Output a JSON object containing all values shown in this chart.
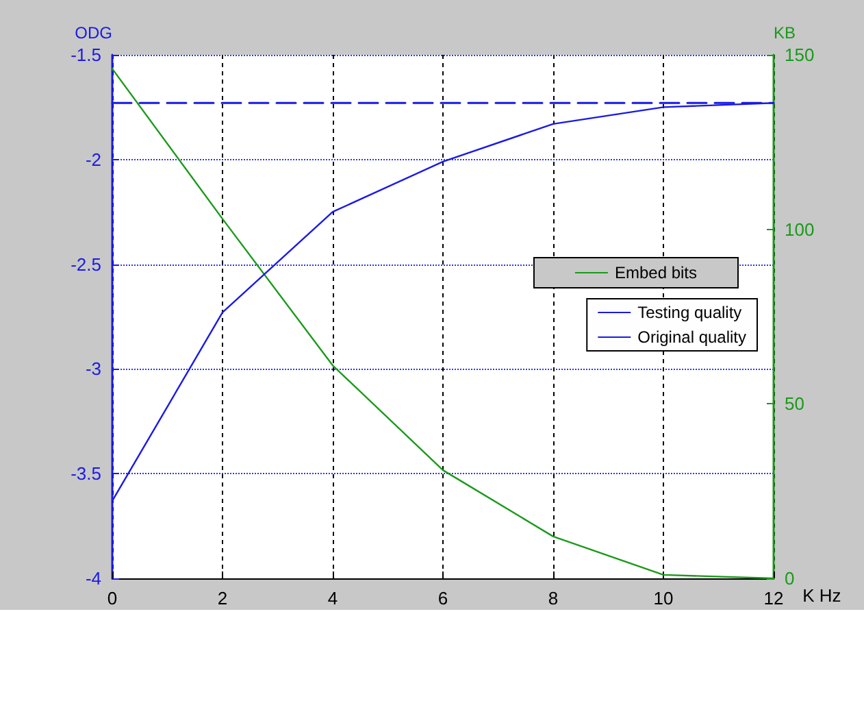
{
  "chart_data": {
    "type": "line",
    "xlabel": "K Hz",
    "ylabel": "ODG",
    "y2label": "KB",
    "x": [
      0,
      2,
      4,
      6,
      8,
      10,
      12
    ],
    "series": [
      {
        "name": "Embed bits",
        "color": "#1a9a1a",
        "axis": "y2",
        "values": [
          146,
          103,
          61,
          31,
          12,
          1,
          0
        ]
      },
      {
        "name": "Testing quality",
        "color": "#1a1ae6",
        "values": [
          -3.63,
          -2.73,
          -2.25,
          -2.01,
          -1.83,
          -1.75,
          -1.73
        ]
      },
      {
        "name": "Original quality",
        "color": "#1a1ae6",
        "line_style": "dashed",
        "values": [
          -1.73,
          -1.73,
          -1.73,
          -1.73,
          -1.73,
          -1.73,
          -1.73
        ]
      }
    ],
    "xlim": [
      0,
      12
    ],
    "xticks": [
      0,
      2,
      4,
      6,
      8,
      10,
      12
    ],
    "ylim": [
      -4,
      -1.5
    ],
    "yticks": [
      -4,
      -3.5,
      -3,
      -2.5,
      -2,
      -1.5
    ],
    "y2lim": [
      0,
      150
    ],
    "y2ticks": [
      0,
      50,
      100,
      150
    ],
    "grid": true,
    "legend": "right",
    "marker": "none"
  }
}
